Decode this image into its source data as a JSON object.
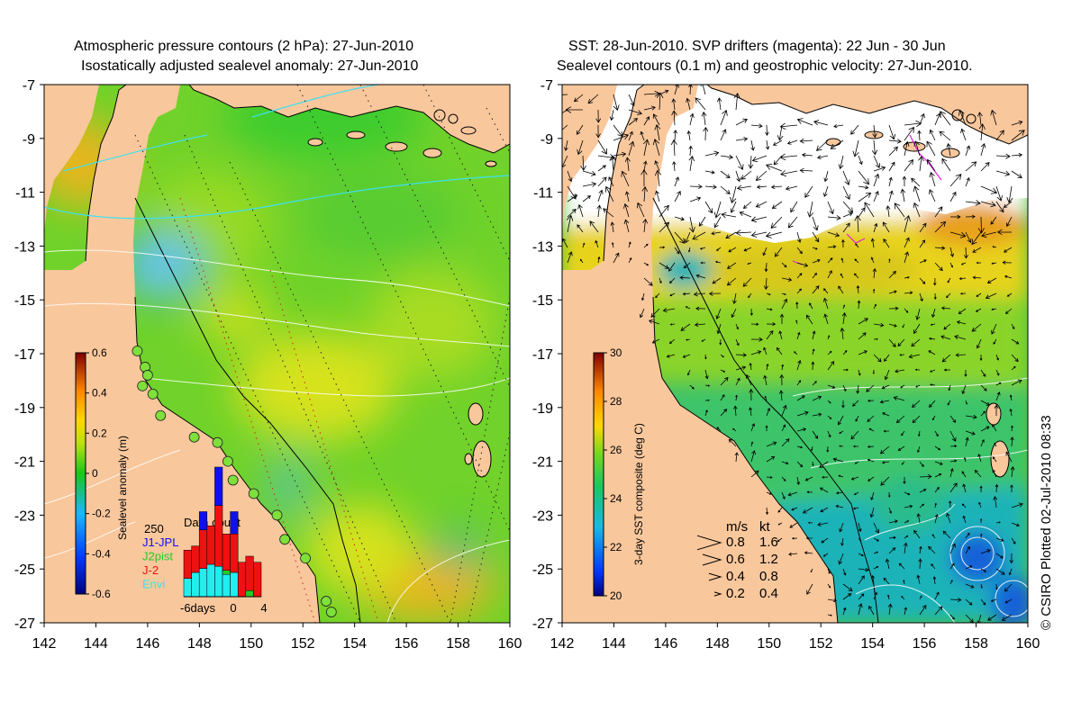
{
  "left_panel": {
    "title_line1": "Atmospheric pressure contours (2 hPa): 27-Jun-2010",
    "title_line2": "Isostatically adjusted sealevel anomaly: 27-Jun-2010",
    "colorbar": {
      "label": "Sealevel anomaly (m)",
      "min": -0.6,
      "max": 0.6,
      "tick_labels": [
        "0.6",
        "0.4",
        "0.2",
        "0",
        "-0.2",
        "-0.4",
        "-0.6"
      ]
    },
    "data_count": {
      "title": "Data count",
      "y_label": "250",
      "x_labels": [
        "-6days",
        "0",
        "4"
      ],
      "legend": [
        {
          "label": "J1-JPL",
          "color": "#1010ee"
        },
        {
          "label": "J2pist",
          "color": "#22cc22"
        },
        {
          "label": "J-2",
          "color": "#ee1111"
        },
        {
          "label": "Envi",
          "color": "#22eeee"
        }
      ],
      "days": [
        -6,
        -5,
        -4,
        -3,
        -2,
        -1,
        0,
        1,
        2,
        3
      ],
      "envi": [
        45,
        60,
        70,
        80,
        75,
        55,
        60,
        0,
        0,
        0
      ],
      "j2": [
        0,
        0,
        0,
        0,
        0,
        10,
        0,
        0,
        15,
        0
      ],
      "red": [
        70,
        65,
        95,
        95,
        150,
        90,
        95,
        85,
        85,
        85
      ],
      "blue": [
        0,
        0,
        45,
        0,
        95,
        0,
        55,
        0,
        0,
        0
      ],
      "max_count": 300
    },
    "coastal_stations": [
      [
        145.6,
        -16.9
      ],
      [
        145.9,
        -17.5
      ],
      [
        146.0,
        -17.8
      ],
      [
        145.8,
        -18.2
      ],
      [
        146.2,
        -18.5
      ],
      [
        146.5,
        -19.3
      ],
      [
        147.8,
        -20.1
      ],
      [
        148.7,
        -20.3
      ],
      [
        149.1,
        -21.0
      ],
      [
        149.3,
        -21.7
      ],
      [
        150.1,
        -22.2
      ],
      [
        151.0,
        -23.0
      ],
      [
        151.3,
        -23.9
      ],
      [
        152.1,
        -24.6
      ],
      [
        152.9,
        -26.2
      ],
      [
        153.1,
        -26.6
      ]
    ]
  },
  "right_panel": {
    "title_line1": "SST: 28-Jun-2010. SVP drifters (magenta): 22 Jun - 30 Jun",
    "title_line2": "Sealevel contours (0.1 m) and geostrophic velocity: 27-Jun-2010.",
    "colorbar": {
      "label": "3-day SST composite (deg C)",
      "min": 20,
      "max": 30,
      "tick_labels": [
        "30",
        "28",
        "26",
        "24",
        "22",
        "20"
      ]
    },
    "velocity_legend": {
      "header_ms": "m/s",
      "header_kt": "kt",
      "rows": [
        {
          "ms": "0.8",
          "kt": "1.6"
        },
        {
          "ms": "0.6",
          "kt": "1.2"
        },
        {
          "ms": "0.4",
          "kt": "0.8"
        },
        {
          "ms": "0.2",
          "kt": "0.4"
        }
      ]
    }
  },
  "axes": {
    "lon_min": 142,
    "lon_max": 160,
    "lat_min": -27,
    "lat_max": -7,
    "x_tick_labels": [
      "142",
      "144",
      "146",
      "148",
      "150",
      "152",
      "154",
      "156",
      "158",
      "160"
    ],
    "y_tick_labels": [
      "-7",
      "-9",
      "-11",
      "-13",
      "-15",
      "-17",
      "-19",
      "-21",
      "-23",
      "-25",
      "-27"
    ]
  },
  "credit": "© CSIRO Plotted 02-Jul-2010 08:33",
  "colors": {
    "land": "#f9c79c",
    "sla_green": "#70d22a",
    "sla_yellow": "#d6e21a",
    "sla_orange": "#e8b51a",
    "sla_blue": "#3ab6e0",
    "sst_yellow": "#e8d31a",
    "sst_green": "#4ec43a",
    "sst_cyan": "#1ab3b8",
    "sst_blue": "#1460d8",
    "no_data": "#ffffff"
  }
}
